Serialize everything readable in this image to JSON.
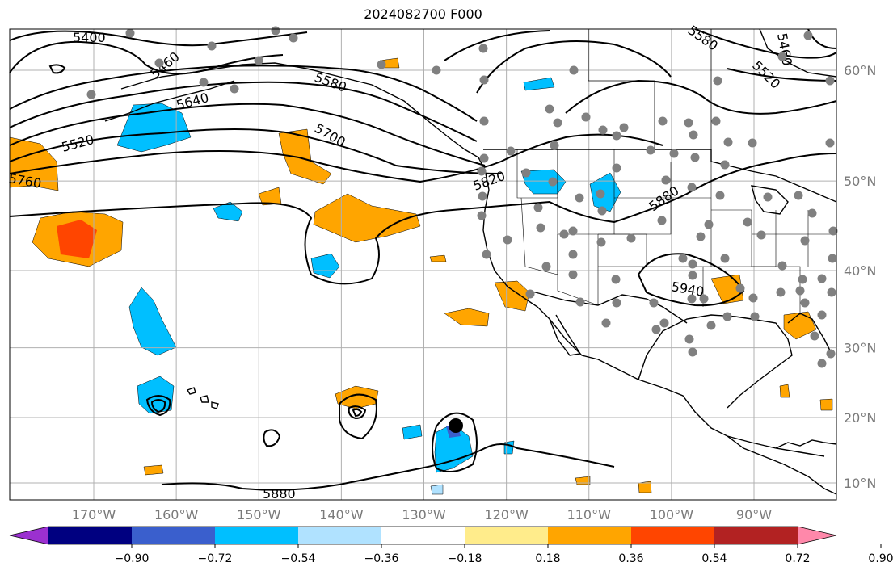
{
  "title": "2024082700 F000",
  "map": {
    "lon_range": [
      -180,
      -80
    ],
    "lat_range": [
      8,
      65
    ],
    "lon_ticks": [
      {
        "value": -170,
        "label": "170°W"
      },
      {
        "value": -160,
        "label": "160°W"
      },
      {
        "value": -150,
        "label": "150°W"
      },
      {
        "value": -140,
        "label": "140°W"
      },
      {
        "value": -130,
        "label": "130°W"
      },
      {
        "value": -120,
        "label": "120°W"
      },
      {
        "value": -110,
        "label": "110°W"
      },
      {
        "value": -100,
        "label": "100°W"
      },
      {
        "value": -90,
        "label": "90°W"
      }
    ],
    "lat_ticks": [
      {
        "value": 60,
        "label": "60°N"
      },
      {
        "value": 50,
        "label": "50°N"
      },
      {
        "value": 40,
        "label": "40°N"
      },
      {
        "value": 30,
        "label": "30°N"
      },
      {
        "value": 20,
        "label": "20°N"
      },
      {
        "value": 10,
        "label": "10°N"
      }
    ],
    "contour_labels": [
      "5400",
      "5460",
      "5520",
      "5580",
      "5640",
      "5700",
      "5760",
      "5820",
      "5880",
      "5940",
      "5520",
      "5580",
      "5460",
      "5880"
    ],
    "colorbar": {
      "ticks": [
        "−0.90",
        "−0.72",
        "−0.54",
        "−0.36",
        "−0.18",
        "0.18",
        "0.36",
        "0.54",
        "0.72",
        "0.90"
      ],
      "colors": [
        "#9b30d0",
        "#000080",
        "#3a5fcd",
        "#00bfff",
        "#b0e2ff",
        "#ffffff",
        "#ffec8b",
        "#ffa500",
        "#ff4500",
        "#b22222",
        "#ff88aa"
      ]
    },
    "point_color": "#808080"
  }
}
